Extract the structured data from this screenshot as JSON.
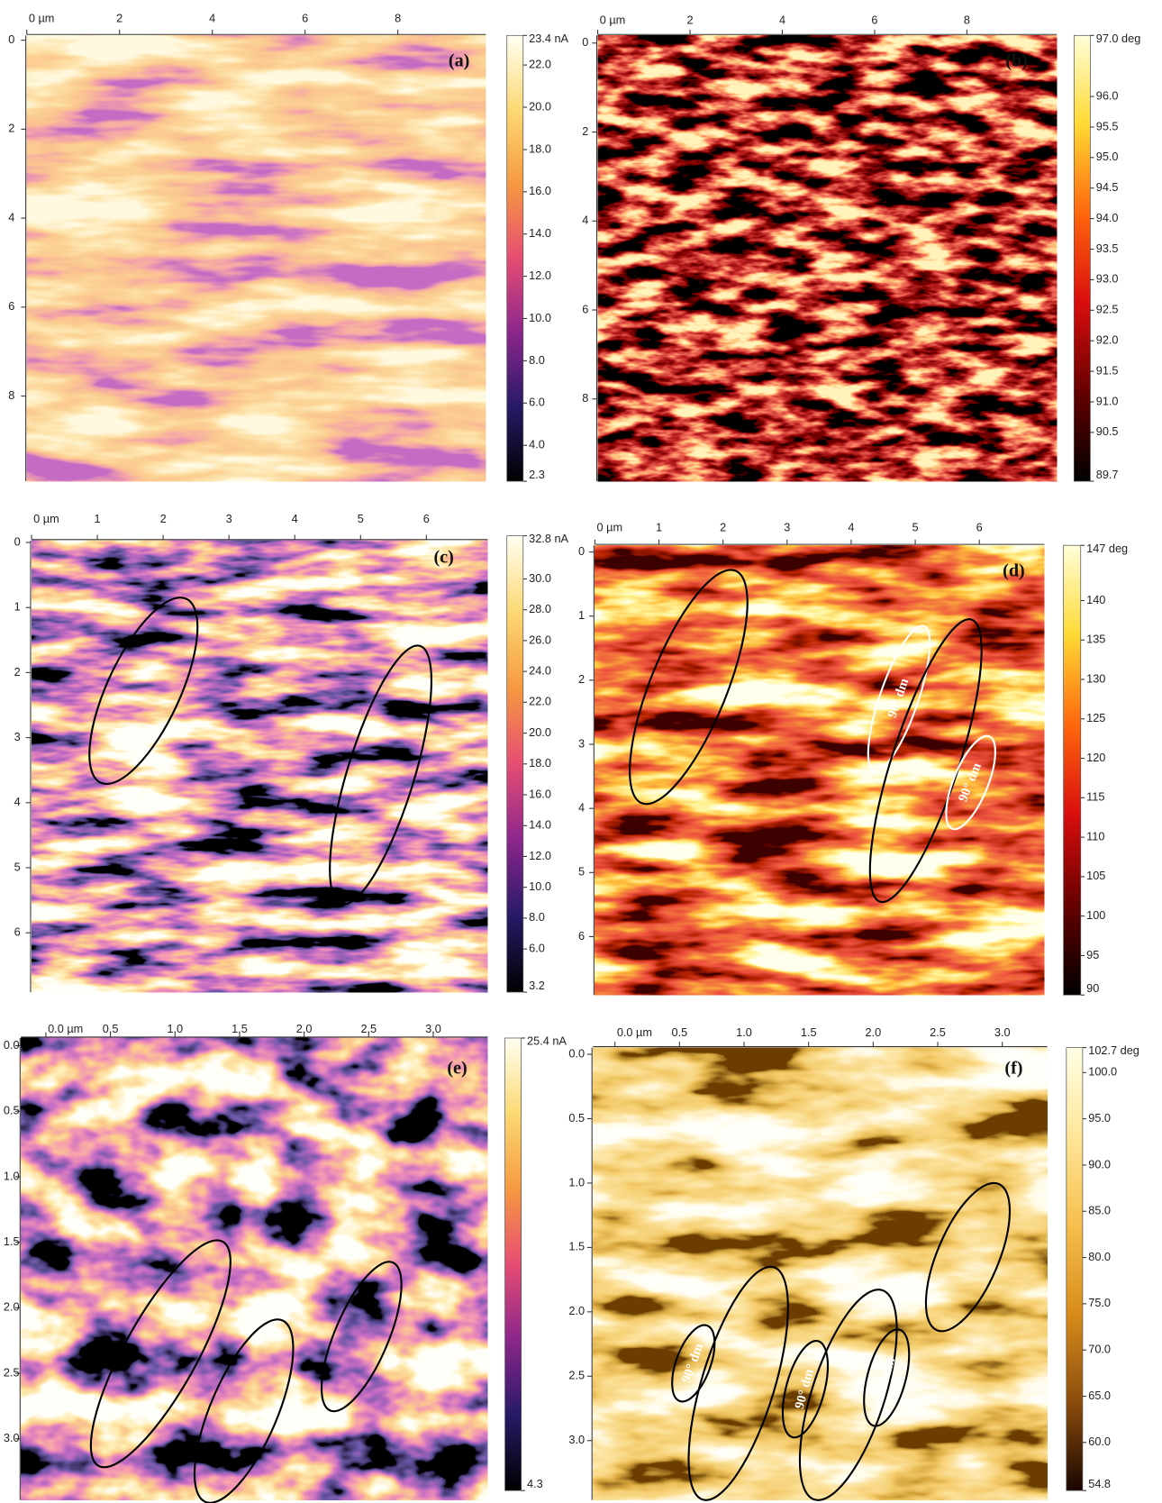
{
  "panels": [
    {
      "label": "(a)",
      "x_ticks": [
        "0 µm",
        "2",
        "4",
        "6",
        "8"
      ],
      "y_ticks": [
        "0",
        "2",
        "4",
        "6",
        "8"
      ],
      "colorbar_labels": [
        "23.4 nA",
        "22.0",
        "20.0",
        "18.0",
        "16.0",
        "14.0",
        "12.0",
        "10.0",
        "8.0",
        "6.0",
        "4.0",
        "2.3"
      ],
      "annotations": []
    },
    {
      "label": "(b)",
      "x_ticks": [
        "0 µm",
        "2",
        "4",
        "6",
        "8"
      ],
      "y_ticks": [
        "0",
        "2",
        "4",
        "6",
        "8"
      ],
      "colorbar_labels": [
        "97.0 deg",
        "96.0",
        "95.5",
        "95.0",
        "94.5",
        "94.0",
        "93.5",
        "93.0",
        "92.5",
        "92.0",
        "91.5",
        "91.0",
        "90.5",
        "89.7"
      ],
      "annotations": []
    },
    {
      "label": "(c)",
      "x_ticks": [
        "0 µm",
        "1",
        "2",
        "3",
        "4",
        "5",
        "6"
      ],
      "y_ticks": [
        "0",
        "1",
        "2",
        "3",
        "4",
        "5",
        "6"
      ],
      "colorbar_labels": [
        "32.8 nA",
        "30.0",
        "28.0",
        "26.0",
        "24.0",
        "22.0",
        "20.0",
        "18.0",
        "16.0",
        "14.0",
        "12.0",
        "10.0",
        "8.0",
        "6.0",
        "3.2"
      ],
      "annotations": []
    },
    {
      "label": "(d)",
      "x_ticks": [
        "0 µm",
        "1",
        "2",
        "3",
        "4",
        "5",
        "6"
      ],
      "y_ticks": [
        "0",
        "1",
        "2",
        "3",
        "4",
        "5",
        "6"
      ],
      "colorbar_labels": [
        "147 deg",
        "140",
        "135",
        "130",
        "125",
        "120",
        "115",
        "110",
        "105",
        "100",
        "95",
        "90"
      ],
      "annotations": [
        "90° dm",
        "90° dm"
      ]
    },
    {
      "label": "(e)",
      "x_ticks": [
        "0.0 µm",
        "0.5",
        "1.0",
        "1.5",
        "2.0",
        "2.5",
        "3.0"
      ],
      "y_ticks": [
        "0.0",
        "0.5",
        "1.0",
        "1.5",
        "2.0",
        "2.5",
        "3.0"
      ],
      "colorbar_labels": [
        "25.4 nA",
        "4.3"
      ],
      "annotations": []
    },
    {
      "label": "(f)",
      "x_ticks": [
        "0.0 µm",
        "0.5",
        "1.0",
        "1.5",
        "2.0",
        "2.5",
        "3.0"
      ],
      "y_ticks": [
        "0.0",
        "0.5",
        "1.0",
        "1.5",
        "2.0",
        "2.5",
        "3.0"
      ],
      "colorbar_labels": [
        "102.7 deg",
        "100.0",
        "95.0",
        "90.0",
        "85.0",
        "80.0",
        "75.0",
        "70.0",
        "65.0",
        "60.0",
        "54.8"
      ],
      "annotations": [
        "90° dm",
        "90° dm",
        "90° dm"
      ]
    }
  ]
}
